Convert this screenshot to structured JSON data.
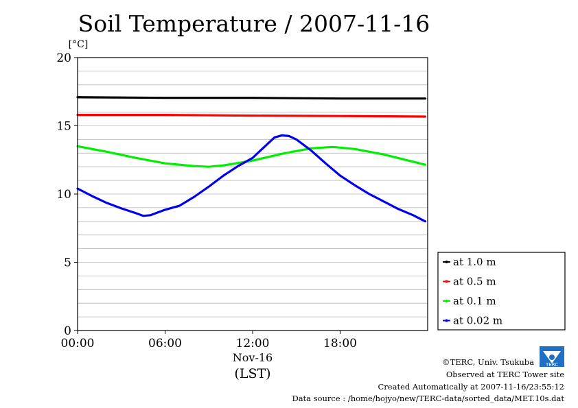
{
  "chart_data": {
    "type": "line",
    "title": "Soil Temperature / 2007-11-16",
    "yunit": "[°C]",
    "ylim": [
      0,
      20
    ],
    "xlim": [
      0,
      24
    ],
    "yticks": [
      0,
      5,
      10,
      15,
      20
    ],
    "xticks": [
      {
        "value": 0,
        "label": "00:00"
      },
      {
        "value": 6,
        "label": "06:00"
      },
      {
        "value": 12,
        "label": "12:00"
      },
      {
        "value": 18,
        "label": "18:00"
      }
    ],
    "xlabel_date": "Nov-16",
    "xlabel_zone": "(LST)",
    "grid": true,
    "legend_position": "right",
    "series": [
      {
        "name": "at 1.0 m",
        "color": "#000000",
        "x": [
          0,
          6,
          12,
          18,
          23.83
        ],
        "y": [
          17.1,
          17.05,
          17.05,
          17.0,
          17.0
        ]
      },
      {
        "name": "at 0.5 m",
        "color": "#ff0000",
        "x": [
          0,
          6,
          12,
          18,
          23.83
        ],
        "y": [
          15.8,
          15.8,
          15.75,
          15.72,
          15.68
        ]
      },
      {
        "name": "at 0.1 m",
        "color": "#00ee00",
        "x": [
          0,
          2,
          4,
          6,
          8,
          9,
          10,
          12,
          14,
          16,
          17.5,
          19,
          21,
          23.83
        ],
        "y": [
          13.5,
          13.1,
          12.65,
          12.25,
          12.05,
          12.0,
          12.1,
          12.45,
          12.95,
          13.35,
          13.45,
          13.3,
          12.9,
          12.15
        ]
      },
      {
        "name": "at 0.02 m",
        "color": "#0000ee",
        "x": [
          0,
          1,
          2,
          3,
          4,
          4.5,
          5,
          6,
          7,
          8,
          9,
          10,
          11,
          12,
          12.75,
          13.5,
          14,
          14.5,
          15,
          16,
          17,
          18,
          19,
          20,
          21,
          22,
          23,
          23.83
        ],
        "y": [
          10.4,
          9.85,
          9.35,
          8.95,
          8.6,
          8.4,
          8.45,
          8.85,
          9.15,
          9.8,
          10.55,
          11.35,
          12.05,
          12.65,
          13.4,
          14.15,
          14.3,
          14.25,
          14.0,
          13.2,
          12.25,
          11.35,
          10.65,
          10.0,
          9.45,
          8.9,
          8.45,
          8.0
        ]
      }
    ]
  },
  "footer": {
    "copyright": "©TERC, Univ. Tsukuba",
    "site": "Observed at TERC Tower site",
    "created": "Created Automatically at 2007-11-16/23:55:12",
    "source": "Data source : /home/hojyo/new/TERC-data/sorted_data/MET.10s.dat"
  },
  "logo": {
    "text": "TERC",
    "color": "#1f6fc5"
  }
}
